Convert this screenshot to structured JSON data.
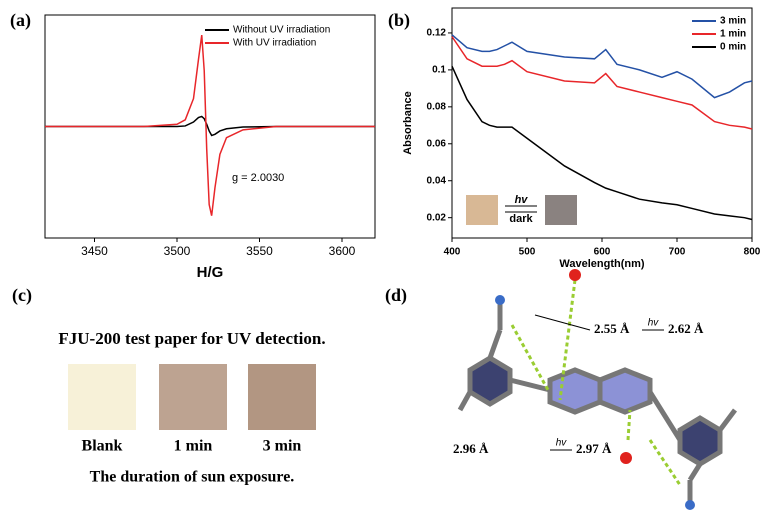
{
  "chart_data": [
    {
      "type": "line",
      "panel_label": "(a)",
      "xlabel": "H/G",
      "annotation": "g = 2.0030",
      "xlim": [
        3420,
        3620
      ],
      "ylim": [
        -1,
        1
      ],
      "xticks": [
        3450,
        3500,
        3550,
        3600
      ],
      "legend": "upper right",
      "x": [
        3420,
        3480,
        3500,
        3505,
        3510,
        3513,
        3515,
        3516.5,
        3518,
        3519.5,
        3521,
        3523,
        3526,
        3530,
        3540,
        3560,
        3620
      ],
      "series": [
        {
          "name": "Without UV irradiation",
          "color": "#000000",
          "values": [
            0,
            0,
            0,
            0.005,
            0.04,
            0.08,
            0.09,
            0.07,
            0.02,
            -0.04,
            -0.08,
            -0.07,
            -0.04,
            -0.02,
            -0.005,
            0,
            0
          ]
        },
        {
          "name": "With UV irradiation",
          "color": "#e8262a",
          "values": [
            0,
            0,
            0.02,
            0.06,
            0.25,
            0.6,
            0.82,
            0.5,
            -0.2,
            -0.7,
            -0.8,
            -0.55,
            -0.25,
            -0.1,
            -0.03,
            0,
            0
          ]
        }
      ]
    },
    {
      "type": "line",
      "panel_label": "(b)",
      "xlabel": "Wavelength(nm)",
      "ylabel": "Absorbance",
      "xlim": [
        400,
        800
      ],
      "ylim": [
        0.009,
        0.1335
      ],
      "xticks": [
        400,
        500,
        600,
        700,
        800
      ],
      "yticks": [
        0.02,
        0.04,
        0.06,
        0.08,
        0.1,
        0.12
      ],
      "legend": "upper right",
      "inset": {
        "top": "hv",
        "bottom": "dark"
      },
      "x": [
        400,
        420,
        440,
        450,
        460,
        470,
        480,
        500,
        550,
        590,
        605,
        620,
        650,
        680,
        700,
        720,
        750,
        770,
        790,
        800
      ],
      "series": [
        {
          "name": "3 min",
          "color": "#2451a6",
          "values": [
            0.119,
            0.112,
            0.11,
            0.11,
            0.111,
            0.113,
            0.115,
            0.11,
            0.107,
            0.106,
            0.111,
            0.103,
            0.1,
            0.096,
            0.099,
            0.095,
            0.085,
            0.088,
            0.093,
            0.094
          ]
        },
        {
          "name": "1 min",
          "color": "#e8262a",
          "values": [
            0.118,
            0.106,
            0.102,
            0.102,
            0.102,
            0.103,
            0.105,
            0.099,
            0.094,
            0.093,
            0.098,
            0.091,
            0.088,
            0.085,
            0.083,
            0.081,
            0.072,
            0.07,
            0.069,
            0.068
          ]
        },
        {
          "name": "0 min",
          "color": "#000000",
          "values": [
            0.102,
            0.084,
            0.072,
            0.07,
            0.069,
            0.069,
            0.069,
            0.063,
            0.048,
            0.039,
            0.036,
            0.034,
            0.03,
            0.028,
            0.027,
            0.025,
            0.022,
            0.021,
            0.02,
            0.019
          ]
        }
      ]
    }
  ],
  "panel_c": {
    "label": "(c)",
    "title": "FJU-200 test paper for UV detection.",
    "samples": [
      "Blank",
      "1 min",
      "3 min"
    ],
    "caption": "The duration of sun exposure."
  },
  "panel_d": {
    "label": "(d)",
    "upper": [
      "2.55 Å",
      "hv",
      "2.62 Å"
    ],
    "lower": [
      "2.96 Å",
      "hv",
      "2.97 Å"
    ]
  }
}
